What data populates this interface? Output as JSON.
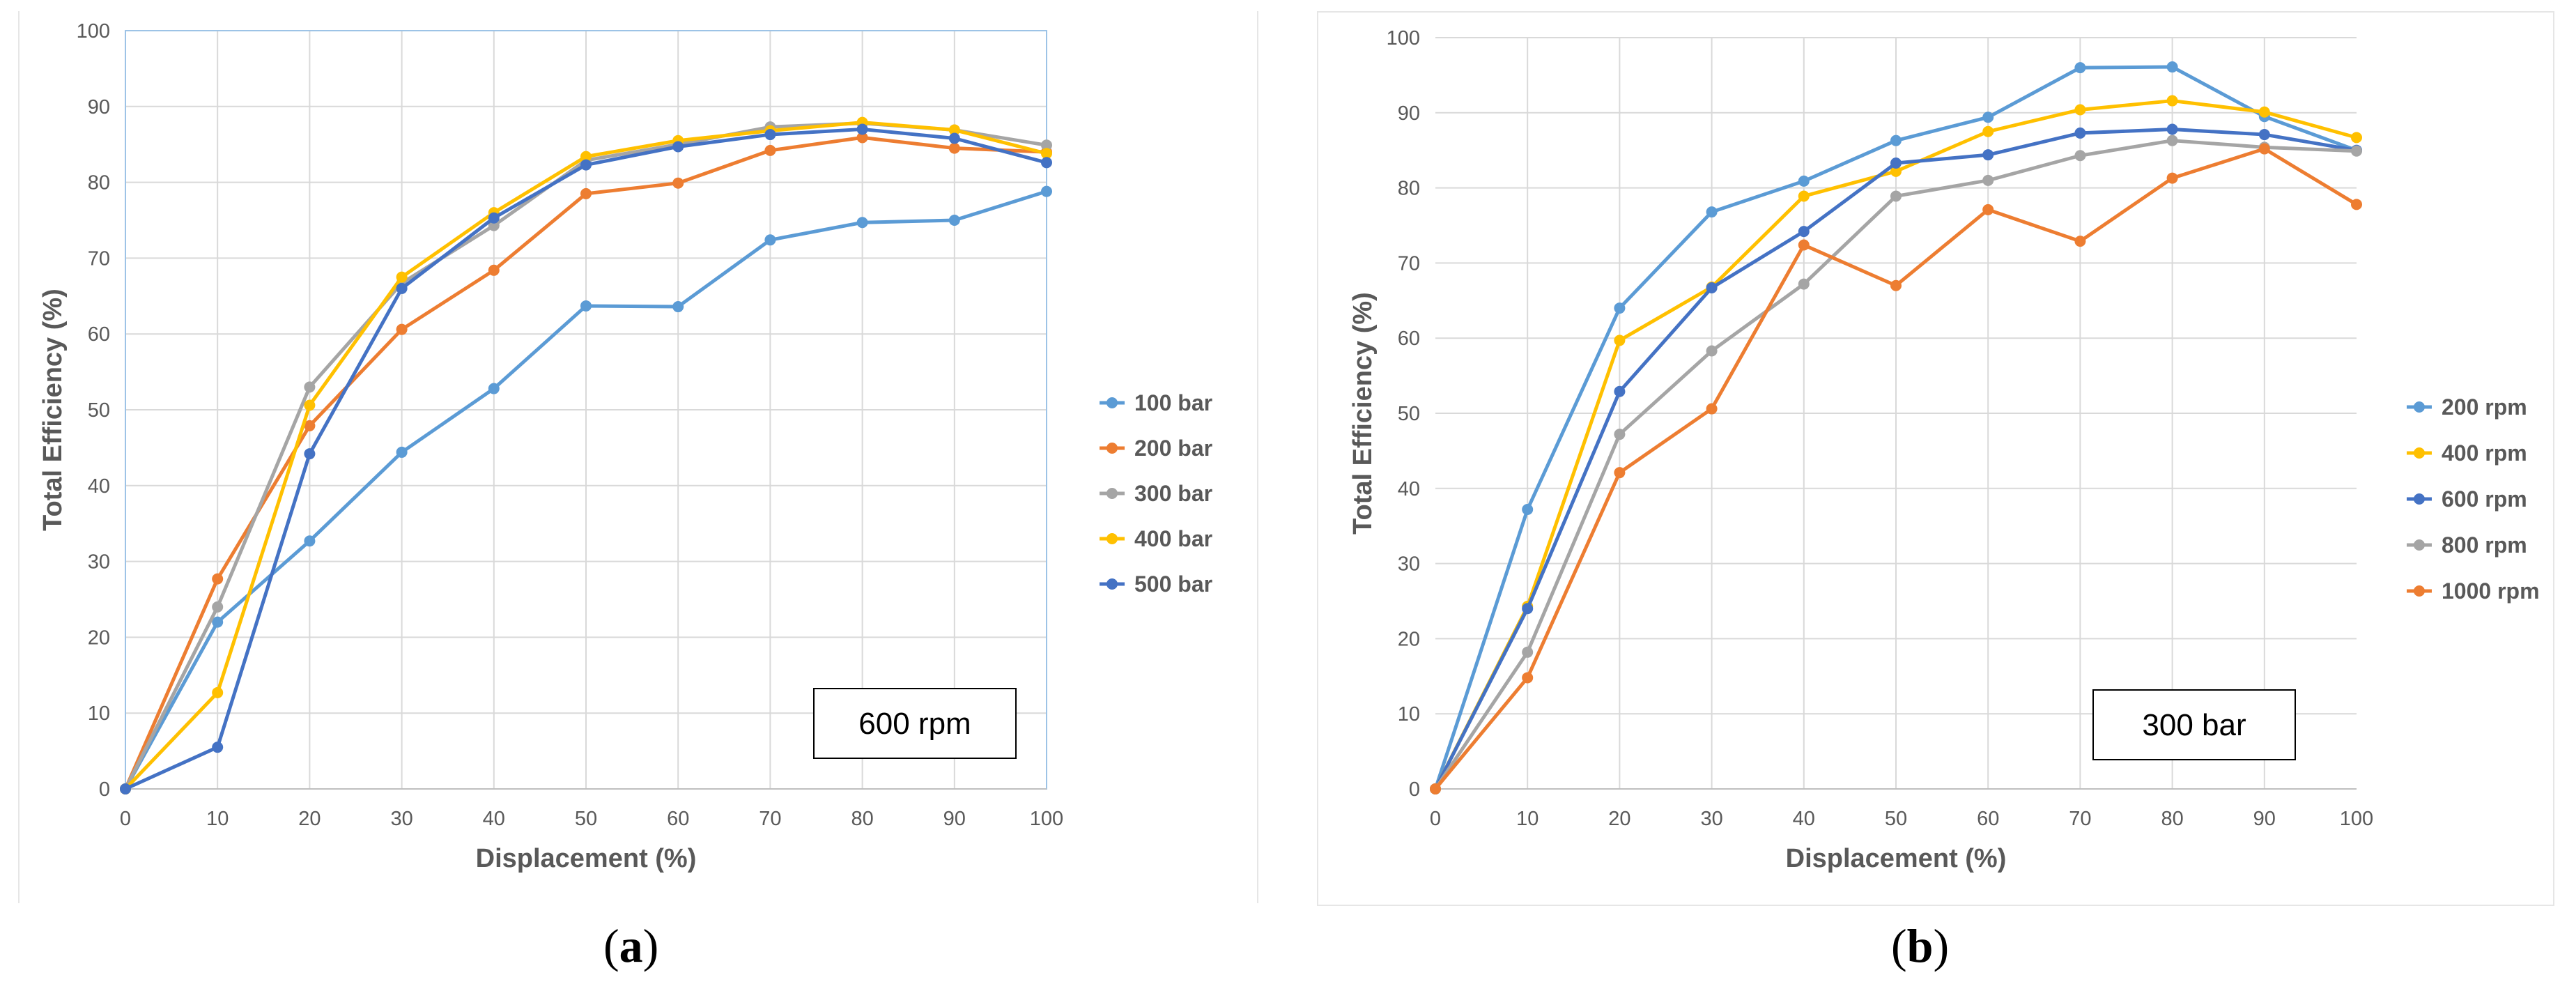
{
  "chart_data": [
    {
      "id": "a",
      "type": "line",
      "caption_label": "a",
      "xlabel": "Displacement (%)",
      "ylabel": "Total Efficiency (%)",
      "xlim": [
        0,
        100
      ],
      "ylim": [
        0,
        100
      ],
      "x_ticks": [
        0,
        10,
        20,
        30,
        40,
        50,
        60,
        70,
        80,
        90,
        100
      ],
      "y_ticks": [
        0,
        10,
        20,
        30,
        40,
        50,
        60,
        70,
        80,
        90,
        100
      ],
      "grid": true,
      "legend_position": "right",
      "annotation": "600 rpm",
      "x": [
        0,
        10,
        20,
        30,
        40,
        50,
        60,
        70,
        80,
        90,
        100
      ],
      "series": [
        {
          "name": "100 bar",
          "color": "#5B9BD5",
          "values": [
            0,
            22.0,
            32.7,
            44.4,
            52.8,
            63.7,
            63.6,
            72.4,
            74.7,
            75.0,
            78.8
          ]
        },
        {
          "name": "200 bar",
          "color": "#ED7D31",
          "values": [
            0,
            27.7,
            47.9,
            60.6,
            68.4,
            78.5,
            79.9,
            84.2,
            85.9,
            84.5,
            84.0
          ]
        },
        {
          "name": "300 bar",
          "color": "#A5A5A5",
          "values": [
            0,
            24.0,
            53.0,
            66.7,
            74.3,
            82.9,
            85.0,
            87.3,
            87.8,
            86.9,
            84.9
          ]
        },
        {
          "name": "400 bar",
          "color": "#FFC000",
          "values": [
            0,
            12.7,
            50.6,
            67.5,
            76.0,
            83.4,
            85.5,
            86.8,
            87.9,
            86.9,
            83.8
          ]
        },
        {
          "name": "500 bar",
          "color": "#4472C4",
          "values": [
            0,
            5.5,
            44.2,
            66.0,
            75.3,
            82.3,
            84.7,
            86.3,
            87.0,
            85.8,
            82.6
          ]
        }
      ]
    },
    {
      "id": "b",
      "type": "line",
      "caption_label": "b",
      "xlabel": "Displacement (%)",
      "ylabel": "Total Efficiency (%)",
      "xlim": [
        0,
        100
      ],
      "ylim": [
        0,
        100
      ],
      "x_ticks": [
        0,
        10,
        20,
        30,
        40,
        50,
        60,
        70,
        80,
        90,
        100
      ],
      "y_ticks": [
        0,
        10,
        20,
        30,
        40,
        50,
        60,
        70,
        80,
        90,
        100
      ],
      "grid": true,
      "legend_position": "right",
      "annotation": "300 bar",
      "x": [
        0,
        10,
        20,
        30,
        40,
        50,
        60,
        70,
        80,
        90,
        100
      ],
      "series": [
        {
          "name": "200 rpm",
          "color": "#5B9BD5",
          "values": [
            0,
            37.2,
            64.0,
            76.8,
            80.9,
            86.3,
            89.4,
            96.0,
            96.1,
            89.5,
            85.0
          ]
        },
        {
          "name": "400 rpm",
          "color": "#FFC000",
          "values": [
            0,
            24.3,
            59.7,
            66.8,
            78.9,
            82.2,
            87.5,
            90.4,
            91.6,
            90.1,
            86.7
          ]
        },
        {
          "name": "600 rpm",
          "color": "#4472C4",
          "values": [
            0,
            24.0,
            52.9,
            66.7,
            74.2,
            83.3,
            84.4,
            87.3,
            87.8,
            87.1,
            85.0
          ]
        },
        {
          "name": "800 rpm",
          "color": "#A5A5A5",
          "values": [
            0,
            18.2,
            47.2,
            58.3,
            67.2,
            78.9,
            81.0,
            84.3,
            86.3,
            85.4,
            84.9
          ]
        },
        {
          "name": "1000 rpm",
          "color": "#ED7D31",
          "values": [
            0,
            14.8,
            42.1,
            50.6,
            72.4,
            67.0,
            77.1,
            72.9,
            81.3,
            85.2,
            77.8
          ]
        }
      ]
    }
  ]
}
